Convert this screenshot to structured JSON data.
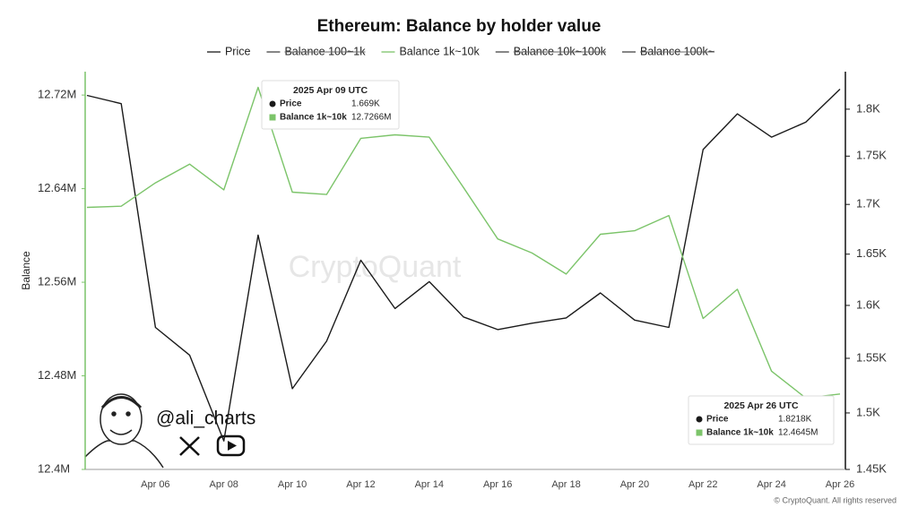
{
  "chart_data": {
    "type": "line",
    "title": "Ethereum: Balance by holder value",
    "y_label": "Balance",
    "watermark": "CryptoQuant",
    "handle": "@ali_charts",
    "copyright": "© CryptoQuant. All rights reserved",
    "categories": [
      null,
      null,
      "Apr 06",
      null,
      "Apr 08",
      null,
      "Apr 10",
      null,
      "Apr 12",
      null,
      "Apr 14",
      null,
      "Apr 16",
      null,
      "Apr 18",
      null,
      "Apr 20",
      null,
      "Apr 22",
      null,
      "Apr 24",
      null,
      "Apr 26"
    ],
    "ylim": [
      12.4,
      12.74
    ],
    "yticks": [
      {
        "value": 12.4,
        "label": "12.4M"
      },
      {
        "value": 12.48,
        "label": "12.48M"
      },
      {
        "value": 12.56,
        "label": "12.56M"
      },
      {
        "value": 12.64,
        "label": "12.64M"
      },
      {
        "value": 12.72,
        "label": "12.72M"
      }
    ],
    "y2lim": [
      1.45,
      1.841
    ],
    "y2scale": "log",
    "y2ticks": [
      {
        "value": 1.45,
        "label": "1.45K"
      },
      {
        "value": 1.5,
        "label": "1.5K"
      },
      {
        "value": 1.55,
        "label": "1.55K"
      },
      {
        "value": 1.6,
        "label": "1.6K"
      },
      {
        "value": 1.65,
        "label": "1.65K"
      },
      {
        "value": 1.7,
        "label": "1.7K"
      },
      {
        "value": 1.75,
        "label": "1.75K"
      },
      {
        "value": 1.8,
        "label": "1.8K"
      }
    ],
    "y_axis_color": "#7cc46a",
    "series": [
      {
        "name": "Price",
        "color": "#1a1a1a",
        "axis": "y2",
        "visible": true,
        "values": [
          1.815,
          1.806,
          1.579,
          1.553,
          1.475,
          1.669,
          1.522,
          1.566,
          1.644,
          1.597,
          1.623,
          1.589,
          1.577,
          1.583,
          1.588,
          1.612,
          1.586,
          1.579,
          1.757,
          1.795,
          1.77,
          1.786,
          1.8218
        ]
      },
      {
        "name": "Balance 100~1k",
        "color": "#555555",
        "visible": false,
        "values": [
          null,
          null,
          null,
          null,
          null,
          null,
          null,
          null,
          null,
          null,
          null,
          null,
          null,
          null,
          null,
          null,
          null,
          null,
          null,
          null,
          null,
          null,
          null
        ]
      },
      {
        "name": "Balance 1k~10k",
        "color": "#7cc46a",
        "visible": true,
        "values": [
          12.624,
          12.625,
          12.645,
          12.661,
          12.639,
          12.7266,
          12.637,
          12.635,
          12.683,
          12.686,
          12.684,
          12.641,
          12.597,
          12.585,
          12.567,
          12.601,
          12.604,
          12.617,
          12.529,
          12.554,
          12.484,
          12.461,
          12.4645
        ]
      },
      {
        "name": "Balance 10k~100k",
        "color": "#555555",
        "visible": false,
        "values": [
          null,
          null,
          null,
          null,
          null,
          null,
          null,
          null,
          null,
          null,
          null,
          null,
          null,
          null,
          null,
          null,
          null,
          null,
          null,
          null,
          null,
          null,
          null
        ]
      },
      {
        "name": "Balance 100k~",
        "color": "#555555",
        "visible": false,
        "values": [
          null,
          null,
          null,
          null,
          null,
          null,
          null,
          null,
          null,
          null,
          null,
          null,
          null,
          null,
          null,
          null,
          null,
          null,
          null,
          null,
          null,
          null,
          null
        ]
      }
    ],
    "tooltips": [
      {
        "title": "2025 Apr 09 UTC",
        "rows": [
          {
            "label": "Price",
            "value": "1.669K"
          },
          {
            "label": "Balance 1k~10k",
            "value": "12.7266M"
          }
        ]
      },
      {
        "title": "2025 Apr 26 UTC",
        "rows": [
          {
            "label": "Price",
            "value": "1.8218K"
          },
          {
            "label": "Balance 1k~10k",
            "value": "12.4645M"
          }
        ]
      }
    ]
  }
}
